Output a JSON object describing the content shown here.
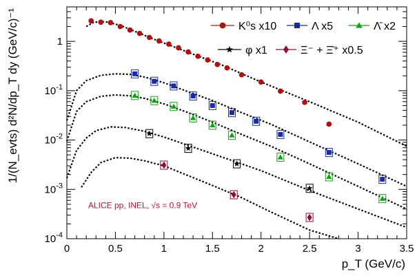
{
  "chart_data": {
    "type": "scatter",
    "title": "",
    "xlabel": "p_T (GeV/c)",
    "ylabel": "1/(N_evts) d²N/dp_T dy (GeV/c)⁻¹",
    "xlim": [
      0,
      3.5
    ],
    "ylim": [
      0.0001,
      5
    ],
    "ylog": true,
    "grid": false,
    "legend_position": "top-right",
    "x_ticks": [
      0,
      0.5,
      1,
      1.5,
      2,
      2.5,
      3,
      3.5
    ],
    "x_tick_labels": [
      "0",
      "0.5",
      "1",
      "1.5",
      "2",
      "2.5",
      "3",
      "3.5"
    ],
    "y_ticks": [
      0.0001,
      0.001,
      0.01,
      0.1,
      1
    ],
    "annotation": {
      "text": "ALICE pp, INEL, √s = 0.9 TeV",
      "x": 0.22,
      "y": 0.00042,
      "color": "#c0102a"
    },
    "series": [
      {
        "name": "K⁰s x10",
        "marker": "circle",
        "color": "#b01010",
        "x": [
          0.25,
          0.35,
          0.45,
          0.55,
          0.65,
          0.75,
          0.85,
          0.95,
          1.05,
          1.15,
          1.25,
          1.35,
          1.45,
          1.55,
          1.65,
          1.8,
          2.0,
          2.2,
          2.45,
          2.7
        ],
        "y": [
          2.6,
          2.45,
          2.4,
          2.0,
          1.7,
          1.45,
          1.2,
          1.02,
          0.88,
          0.74,
          0.61,
          0.5,
          0.42,
          0.34,
          0.29,
          0.21,
          0.15,
          0.098,
          0.058,
          0.021
        ],
        "fit_x": [
          0.2,
          0.28,
          0.4,
          0.55,
          0.7,
          0.9,
          1.1,
          1.3,
          1.6,
          2.0,
          2.5,
          3.0,
          3.5
        ],
        "fit_y": [
          2.0,
          2.45,
          2.5,
          2.1,
          1.6,
          1.1,
          0.78,
          0.55,
          0.33,
          0.15,
          0.06,
          0.023,
          0.0075
        ]
      },
      {
        "name": "Λ x5",
        "marker": "square",
        "color": "#1a2aa0",
        "x": [
          0.7,
          0.9,
          1.1,
          1.3,
          1.5,
          1.7,
          1.95,
          2.2,
          2.7,
          3.25
        ],
        "y": [
          0.22,
          0.155,
          0.125,
          0.078,
          0.05,
          0.036,
          0.024,
          0.013,
          0.0056,
          0.0016
        ],
        "fit_x": [
          0.0,
          0.1,
          0.2,
          0.35,
          0.5,
          0.65,
          0.8,
          1.0,
          1.25,
          1.5,
          1.8,
          2.1,
          2.5,
          3.0,
          3.5
        ],
        "fit_y": [
          0.025,
          0.1,
          0.16,
          0.205,
          0.22,
          0.215,
          0.19,
          0.145,
          0.095,
          0.063,
          0.036,
          0.021,
          0.0092,
          0.0033,
          0.00115
        ]
      },
      {
        "name": "Λ̄ x2",
        "marker": "triangle",
        "color": "#14a014",
        "x": [
          0.7,
          0.9,
          1.1,
          1.3,
          1.5,
          1.7,
          2.2,
          2.7,
          3.25
        ],
        "y": [
          0.08,
          0.063,
          0.048,
          0.028,
          0.02,
          0.0125,
          0.0045,
          0.0018,
          0.00065
        ],
        "fit_x": [
          0.0,
          0.1,
          0.2,
          0.35,
          0.5,
          0.65,
          0.8,
          1.0,
          1.25,
          1.5,
          1.8,
          2.1,
          2.5,
          3.0,
          3.5
        ],
        "fit_y": [
          0.0095,
          0.038,
          0.06,
          0.077,
          0.082,
          0.079,
          0.07,
          0.054,
          0.036,
          0.023,
          0.013,
          0.0075,
          0.0033,
          0.00115,
          0.0004
        ]
      },
      {
        "name": "φ x1",
        "marker": "star",
        "color": "#000000",
        "x": [
          0.85,
          1.25,
          1.75,
          2.5
        ],
        "y": [
          0.0135,
          0.0068,
          0.0033,
          0.00105
        ],
        "fit_x": [
          0.0,
          0.1,
          0.2,
          0.3,
          0.45,
          0.6,
          0.8,
          1.0,
          1.3,
          1.6,
          2.0,
          2.5,
          3.0,
          3.5
        ],
        "fit_y": [
          0.0017,
          0.0062,
          0.011,
          0.0155,
          0.0185,
          0.018,
          0.015,
          0.0115,
          0.0072,
          0.0045,
          0.0024,
          0.00095,
          0.0004,
          0.00017
        ]
      },
      {
        "name": "Ξ⁻ + Ξ̄⁺ x0.5",
        "marker": "diamond",
        "color": "#8a1030",
        "x": [
          1.0,
          1.72,
          2.5
        ],
        "y": [
          0.0031,
          0.00078,
          0.00027
        ],
        "fit_x": [
          0.15,
          0.25,
          0.35,
          0.5,
          0.65,
          0.8,
          1.0,
          1.25,
          1.5,
          1.8,
          2.1,
          2.5,
          2.8
        ],
        "fit_y": [
          0.0011,
          0.0022,
          0.0035,
          0.0044,
          0.0043,
          0.0038,
          0.003,
          0.0019,
          0.0012,
          0.00068,
          0.00035,
          0.00015,
          0.0001
        ]
      }
    ]
  }
}
